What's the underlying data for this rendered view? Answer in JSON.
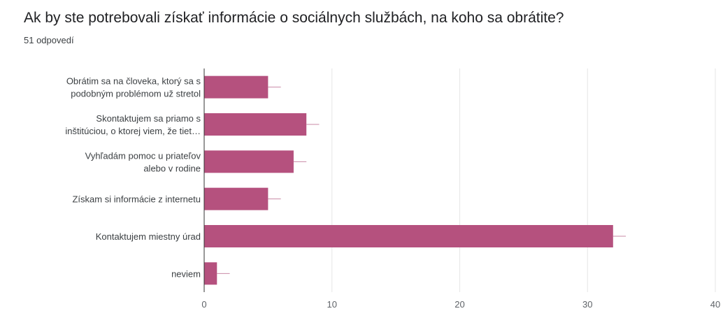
{
  "header": {
    "title": "Ak by ste potrebovali získať informácie o sociálnych službách, na koho sa obrátite?",
    "response_count": "51 odpovedí"
  },
  "colors": {
    "bar": "#b5517e",
    "grid": "#e6e6e6",
    "axis": "#5f6368",
    "error": "#c98aa6"
  },
  "chart_data": {
    "type": "bar",
    "orientation": "horizontal",
    "categories": [
      [
        "Obrátim sa na človeka, ktorý sa s",
        "podobným problémom už stretol"
      ],
      [
        "Skontaktujem sa priamo s",
        "inštitúciou, o ktorej viem, že tiet…"
      ],
      [
        "Vyhľadám pomoc u priateľov",
        "alebo v rodine"
      ],
      [
        "Získam si informácie z internetu"
      ],
      [
        "Kontaktujem miestny úrad"
      ],
      [
        "neviem"
      ]
    ],
    "values": [
      5,
      8,
      7,
      5,
      32,
      1
    ],
    "xlim": [
      0,
      40
    ],
    "xticks": [
      "0",
      "10",
      "20",
      "30",
      "40"
    ],
    "grid": true,
    "legend": "none"
  }
}
